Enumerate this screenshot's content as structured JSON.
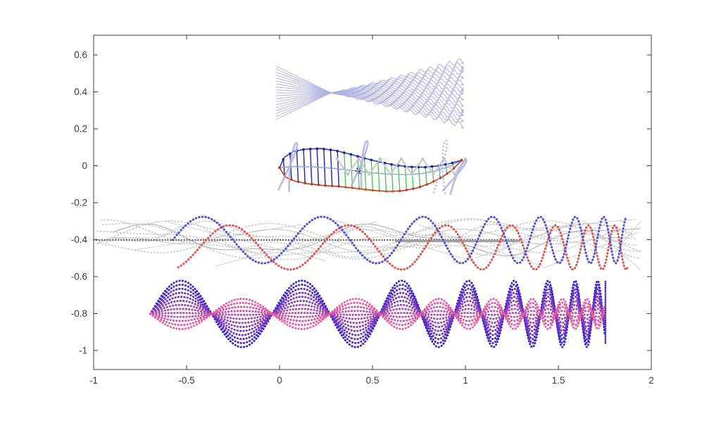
{
  "figure": {
    "background": "#ffffff"
  },
  "chart_data": {
    "type": "line",
    "title": "",
    "xlabel": "",
    "ylabel": "",
    "xlim": [
      -1,
      2
    ],
    "ylim": [
      -1.103,
      0.707
    ],
    "grid": false,
    "box": true,
    "axis_color": "#3c3c3c",
    "tick_label_color": "#3c3c3c",
    "xtick_values": [
      -1,
      -0.5,
      0,
      0.5,
      1,
      1.5,
      2
    ],
    "xtick_labels": [
      "-1",
      "-0.5",
      "0",
      "0.5",
      "1",
      "1.5",
      "2"
    ],
    "ytick_values": [
      0.6,
      0.4,
      0.2,
      0,
      -0.2,
      -0.4,
      -0.6,
      -0.8,
      -1
    ],
    "ytick_labels": [
      "0.6",
      "0.4",
      "0.2",
      "0",
      "-0.2",
      "-0.4",
      "-0.6",
      "-0.8",
      "-1"
    ],
    "groups": {
      "fan": {
        "color": "#b2b2e2",
        "x_start": -0.02,
        "x_pinch": 0.276,
        "x_end": 0.985,
        "y_center": 0.395,
        "left_half": 0.145,
        "right_half": 0.175,
        "n": 19,
        "mesh_wavelength": 0.052,
        "mesh_amp": 0.018
      },
      "pen_strokes": {
        "color": "#b2b2e2",
        "strokes": [
          {
            "cx": 0.055,
            "cy": -0.005,
            "h": 0.26,
            "tilt": 14,
            "style": "solid"
          },
          {
            "cx": 0.44,
            "cy": 0.01,
            "h": 0.25,
            "tilt": 12,
            "style": "solid"
          },
          {
            "cx": 0.875,
            "cy": -0.005,
            "h": 0.28,
            "tilt": 6,
            "style": "dotted"
          },
          {
            "cx": 0.95,
            "cy": -0.055,
            "h": 0.2,
            "tilt": 30,
            "style": "solid"
          }
        ]
      },
      "fish": {
        "top_color": "#2e3ec4",
        "top_marker_color": "#1d1d9c",
        "bottom_color": "#c63a20",
        "bottom_marker_color": "#c03318",
        "bottom_marker_alt_color": "#cc5a1a",
        "rib_navy_color": "#2d2da6",
        "rib_green_color": "#45c648",
        "midline_color": "#84a7d8",
        "star_color": "#111111",
        "star": [
          0.425,
          -0.028
        ],
        "rib_x0": 0.02,
        "rib_x1": 0.93,
        "rib_count": 26,
        "navy_ribs": 9,
        "top_pts": [
          [
            0.0,
            -0.01
          ],
          [
            0.025,
            0.045
          ],
          [
            0.075,
            0.078
          ],
          [
            0.14,
            0.09
          ],
          [
            0.22,
            0.093
          ],
          [
            0.3,
            0.083
          ],
          [
            0.38,
            0.063
          ],
          [
            0.46,
            0.04
          ],
          [
            0.54,
            0.02
          ],
          [
            0.62,
            0.004
          ],
          [
            0.7,
            -0.006
          ],
          [
            0.78,
            -0.008
          ],
          [
            0.85,
            -0.001
          ],
          [
            0.92,
            0.013
          ],
          [
            0.98,
            0.03
          ]
        ],
        "bottom_pts": [
          [
            0.0,
            -0.01
          ],
          [
            0.03,
            -0.06
          ],
          [
            0.08,
            -0.082
          ],
          [
            0.15,
            -0.097
          ],
          [
            0.23,
            -0.106
          ],
          [
            0.32,
            -0.112
          ],
          [
            0.41,
            -0.122
          ],
          [
            0.5,
            -0.133
          ],
          [
            0.58,
            -0.139
          ],
          [
            0.66,
            -0.136
          ],
          [
            0.74,
            -0.12
          ],
          [
            0.81,
            -0.095
          ],
          [
            0.88,
            -0.058
          ],
          [
            0.93,
            -0.022
          ],
          [
            0.98,
            0.03
          ]
        ],
        "mid_pts": [
          [
            0.0,
            -0.01
          ],
          [
            0.08,
            -0.004
          ],
          [
            0.18,
            -0.006
          ],
          [
            0.28,
            -0.013
          ],
          [
            0.38,
            -0.024
          ],
          [
            0.48,
            -0.036
          ],
          [
            0.58,
            -0.045
          ],
          [
            0.68,
            -0.048
          ],
          [
            0.76,
            -0.043
          ],
          [
            0.84,
            -0.028
          ],
          [
            0.91,
            -0.006
          ],
          [
            0.98,
            0.03
          ]
        ],
        "zigzag": {
          "color": "#c8c8c8",
          "dot_color": "#c3c3c3",
          "x0": 0.31,
          "x1": 1.0,
          "n": 13,
          "y_hi": 0.038,
          "y_lo": -0.046
        }
      },
      "mid_waves": {
        "ref_dotted": {
          "color": "#666666",
          "y": -0.402,
          "x0": -1.0,
          "x1": 1.29
        },
        "ref_solid": {
          "color": "#a0a0a0",
          "y": -0.408,
          "x0": 0.62,
          "x1": 1.29
        },
        "blue": {
          "color": "#5050d8",
          "x0": -0.575,
          "x1": 1.87,
          "center": -0.402,
          "amp": 0.126,
          "period_start": 0.65,
          "period_end": 0.115
        },
        "red": {
          "color": "#e2554e",
          "x0": -0.545,
          "phase_x0": -0.43,
          "x1": 1.875,
          "center": -0.442,
          "amp": 0.12,
          "period_start": 0.65,
          "period_end": 0.115
        },
        "gray_color": "#cbcbcb",
        "gray_curves": [
          {
            "a": 0.085,
            "L": 1.9,
            "s": -1.0,
            "b": 0.02,
            "L2": 0.7,
            "p": 1.0,
            "x0": -0.97,
            "x1": 1.93,
            "style": "dots"
          },
          {
            "a": 0.06,
            "L": 1.6,
            "s": -0.4,
            "b": 0.03,
            "L2": 0.9,
            "p": 2.2,
            "x0": -0.97,
            "x1": 1.9,
            "style": "dots"
          },
          {
            "a": 0.1,
            "L": 2.2,
            "s": -1.6,
            "b": 0.025,
            "L2": 0.8,
            "p": 0.5,
            "x0": -0.95,
            "x1": 1.95,
            "style": "dots"
          },
          {
            "a": 0.07,
            "L": 1.3,
            "s": 0.2,
            "b": 0.02,
            "L2": 0.55,
            "p": 3.0,
            "x0": -0.9,
            "x1": 1.95,
            "style": "thin",
            "dark": true
          },
          {
            "a": 0.05,
            "L": 1.1,
            "s": -0.8,
            "b": 0.035,
            "L2": 0.45,
            "p": 1.8,
            "x0": -0.98,
            "x1": 1.92,
            "style": "dots"
          },
          {
            "a": 0.09,
            "L": 2.0,
            "s": 0.5,
            "b": 0.02,
            "L2": 0.65,
            "p": 4.0,
            "x0": -0.96,
            "x1": 1.94,
            "style": "dots"
          },
          {
            "a": 0.04,
            "L": 0.9,
            "s": -0.2,
            "b": 0.03,
            "L2": 1.4,
            "p": 2.6,
            "x0": -0.9,
            "x1": 1.9,
            "style": "thin"
          },
          {
            "a": 0.075,
            "L": 1.7,
            "s": 0.9,
            "b": 0.025,
            "L2": 0.5,
            "p": 0.2,
            "x0": -0.93,
            "x1": 1.95,
            "style": "dots"
          },
          {
            "a": 0.055,
            "L": 1.45,
            "s": -1.2,
            "b": 0.02,
            "L2": 0.75,
            "p": 5.0,
            "x0": -0.98,
            "x1": 1.88,
            "style": "dots"
          }
        ],
        "gray_segments": [
          [
            -0.78,
            -0.455,
            0.12,
            -0.318
          ],
          [
            -0.62,
            -0.3,
            0.25,
            -0.515
          ],
          [
            -0.35,
            -0.545,
            0.52,
            -0.302
          ],
          [
            0.3,
            -0.296,
            1.05,
            -0.52
          ],
          [
            0.75,
            -0.32,
            1.42,
            -0.545
          ],
          [
            1.05,
            -0.5,
            1.62,
            -0.3
          ],
          [
            1.3,
            -0.345,
            1.92,
            -0.29
          ],
          [
            1.42,
            -0.553,
            1.93,
            -0.36
          ],
          [
            1.63,
            -0.295,
            1.945,
            -0.565
          ],
          [
            1.8,
            -0.47,
            1.945,
            -0.3
          ]
        ]
      },
      "wave_family": {
        "x0": -0.695,
        "x1": 1.752,
        "center": -0.802,
        "period_start": 0.66,
        "period_end": 0.105,
        "n": 13,
        "amp_start": 0.18,
        "amp_end": -0.082,
        "color_start": "#3a23d2",
        "color_end": "#ef5d9c",
        "spike": {
          "x": 1.753,
          "y_top": -0.627,
          "y_bottom": -0.965
        }
      }
    }
  }
}
